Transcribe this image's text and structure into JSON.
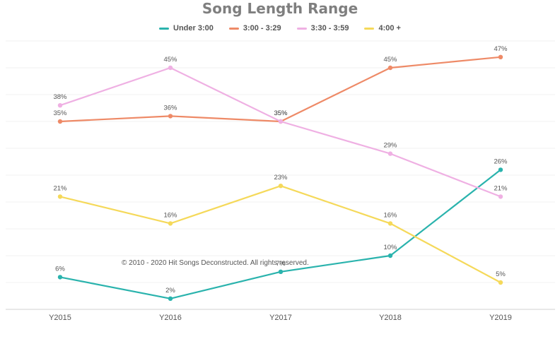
{
  "chart_data": {
    "type": "line",
    "title": "Song Length Range",
    "categories": [
      "Y2015",
      "Y2016",
      "Y2017",
      "Y2018",
      "Y2019"
    ],
    "ylim": [
      0,
      50
    ],
    "grid": true,
    "legend_position": "top-center",
    "series": [
      {
        "name": "Under 3:00",
        "color": "#2ab3ad",
        "values": [
          6,
          2,
          7,
          10,
          26
        ],
        "labels": [
          "6%",
          "2%",
          "7%",
          "10%",
          "26%"
        ]
      },
      {
        "name": "3:00 - 3:29",
        "color": "#ee8a67",
        "values": [
          35,
          36,
          35,
          45,
          47
        ],
        "labels": [
          "35%",
          "36%",
          "35%",
          "45%",
          "47%"
        ]
      },
      {
        "name": "3:30 - 3:59",
        "color": "#efb0e3",
        "values": [
          38,
          45,
          35,
          29,
          21
        ],
        "labels": [
          "38%",
          "45%",
          "35%",
          "29%",
          "21%"
        ]
      },
      {
        "name": "4:00 +",
        "color": "#f5d95a",
        "values": [
          21,
          16,
          23,
          16,
          5
        ],
        "labels": [
          "21%",
          "16%",
          "23%",
          "16%",
          "5%"
        ]
      }
    ]
  },
  "copyright": "© 2010 - 2020 Hit Songs Deconstructed. All rights reserved."
}
